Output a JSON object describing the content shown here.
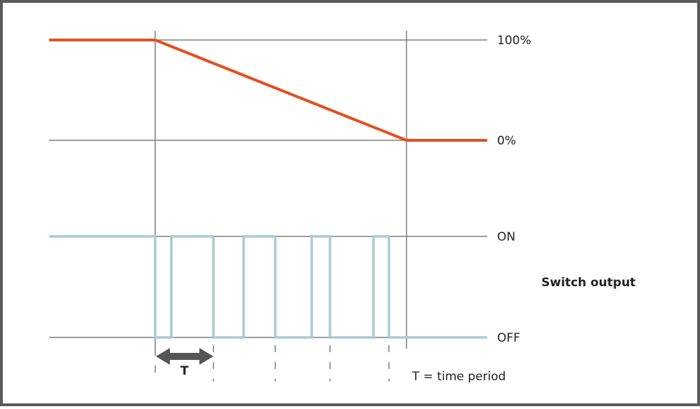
{
  "labels": {
    "level_high": "100%",
    "level_low": "0%",
    "state_on": "ON",
    "state_off": "OFF",
    "switch_output": "Switch output",
    "period_symbol": "T",
    "period_legend": "T = time period"
  },
  "colors": {
    "frame": "#5a5a5a",
    "grid": "#7f7f7f",
    "ramp": "#e2501e",
    "switch": "#a6cbd7",
    "arrow": "#555555",
    "text": "#222222"
  }
}
